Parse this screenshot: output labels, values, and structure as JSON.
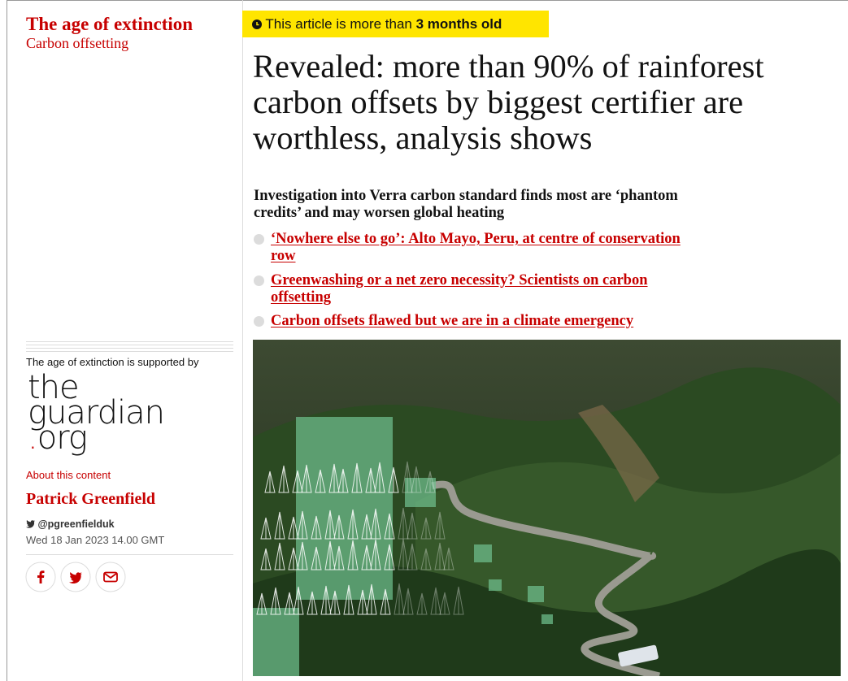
{
  "section": {
    "title": "The age of extinction",
    "subtitle": "Carbon offsetting"
  },
  "notice": {
    "text": "This article is more than",
    "highlight": "3 months old"
  },
  "headline": {
    "lines": [
      "Revealed: more than 90% of rainforest",
      "carbon offsets by biggest certifier are",
      "worthless, analysis shows"
    ]
  },
  "standfirst": {
    "lines": [
      "Investigation into Verra carbon standard finds most are ‘phantom",
      "credits’ and may worsen global heating"
    ]
  },
  "related": [
    {
      "lines": [
        "‘Nowhere else to go’: Alto Mayo, Peru, at centre of conservation",
        "row"
      ]
    },
    {
      "lines": [
        "Greenwashing or a net zero necessity? Scientists on carbon",
        "offsetting"
      ]
    },
    {
      "lines": [
        "Carbon offsets flawed but we are in a climate emergency"
      ]
    }
  ],
  "sidebar": {
    "supported_by": "The age of extinction is supported by",
    "logo": {
      "line1": "the",
      "line2": "guardian",
      "dot": ".",
      "line3": "org"
    },
    "about": "About this content",
    "author": "Patrick Greenfield",
    "twitter": "@pgreenfielduk",
    "date": "Wed 18 Jan 2023 14.00 GMT"
  }
}
